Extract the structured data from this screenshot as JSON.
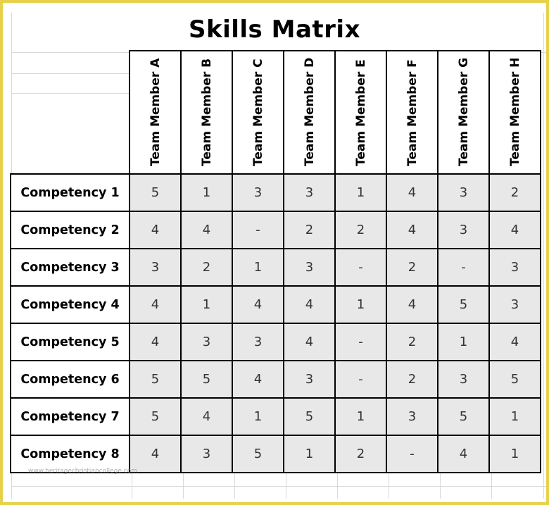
{
  "title": "Skills Matrix",
  "members": [
    "Team Member A",
    "Team Member B",
    "Team Member C",
    "Team Member D",
    "Team Member E",
    "Team Member F",
    "Team Member G",
    "Team Member H"
  ],
  "rows": [
    {
      "label": "Competency 1",
      "values": [
        "5",
        "1",
        "3",
        "3",
        "1",
        "4",
        "3",
        "2"
      ]
    },
    {
      "label": "Competency 2",
      "values": [
        "4",
        "4",
        "-",
        "2",
        "2",
        "4",
        "3",
        "4"
      ]
    },
    {
      "label": "Competency 3",
      "values": [
        "3",
        "2",
        "1",
        "3",
        "-",
        "2",
        "-",
        "3"
      ]
    },
    {
      "label": "Competency 4",
      "values": [
        "4",
        "1",
        "4",
        "4",
        "1",
        "4",
        "5",
        "3"
      ]
    },
    {
      "label": "Competency 5",
      "values": [
        "4",
        "3",
        "3",
        "4",
        "-",
        "2",
        "1",
        "4"
      ]
    },
    {
      "label": "Competency 6",
      "values": [
        "5",
        "5",
        "4",
        "3",
        "-",
        "2",
        "3",
        "5"
      ]
    },
    {
      "label": "Competency 7",
      "values": [
        "5",
        "4",
        "1",
        "5",
        "1",
        "3",
        "5",
        "1"
      ]
    },
    {
      "label": "Competency 8",
      "values": [
        "4",
        "3",
        "5",
        "1",
        "2",
        "-",
        "4",
        "1"
      ]
    }
  ],
  "watermark": "www.heritagechristiancollege.com"
}
